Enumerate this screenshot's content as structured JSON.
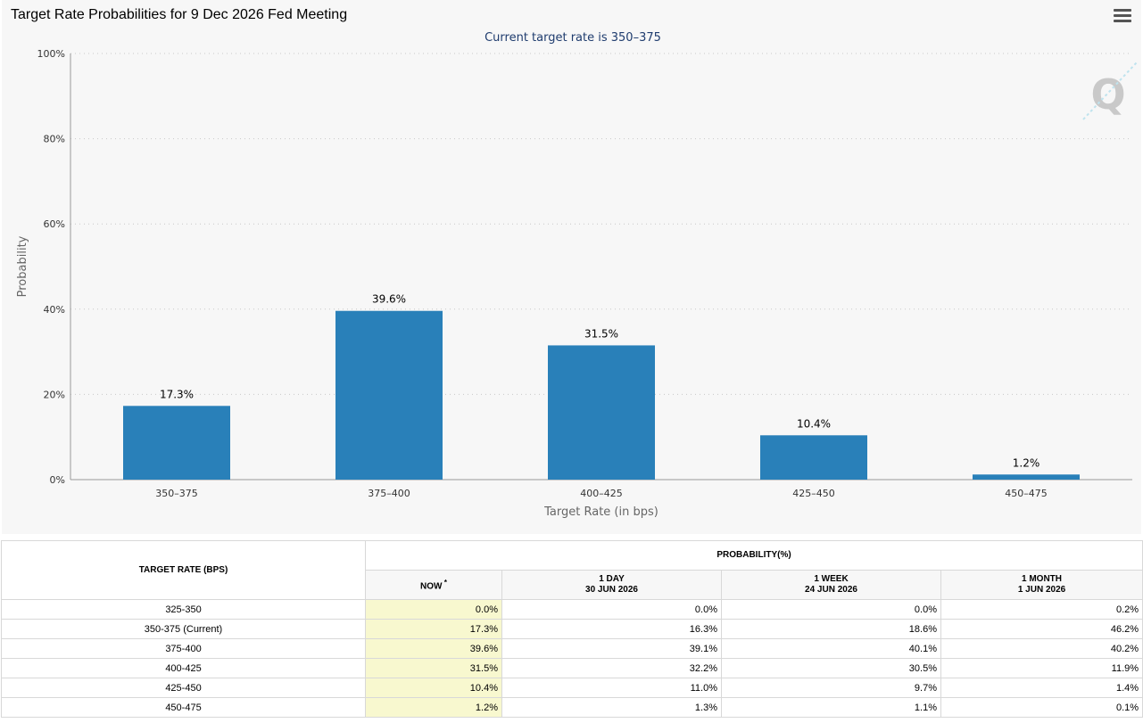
{
  "chart_title": "Target Rate Probabilities for 9 Dec 2026 Fed Meeting",
  "chart_data": {
    "type": "bar",
    "title": "Target Rate Probabilities for 9 Dec 2026 Fed Meeting",
    "subtitle": "Current target rate is 350–375",
    "categories": [
      "350–375",
      "375–400",
      "400–425",
      "425–450",
      "450–475"
    ],
    "values": [
      17.3,
      39.6,
      31.5,
      10.4,
      1.2
    ],
    "data_labels": [
      "17.3%",
      "39.6%",
      "31.5%",
      "10.4%",
      "1.2%"
    ],
    "xlabel": "Target Rate (in bps)",
    "ylabel": "Probability",
    "ylim": [
      0,
      100
    ],
    "yticks": [
      0,
      20,
      40,
      60,
      80,
      100
    ],
    "ytick_labels": [
      "0%",
      "20%",
      "40%",
      "60%",
      "80%",
      "100%"
    ],
    "grid": true,
    "bar_color": "#2980b9"
  },
  "watermark": "Q",
  "menu_icon": "hamburger-menu-icon",
  "table": {
    "rate_header": "TARGET RATE (BPS)",
    "prob_header": "PROBABILITY(%)",
    "columns": [
      {
        "line1": "NOW",
        "marker": "*",
        "line2": ""
      },
      {
        "line1": "1 DAY",
        "marker": "",
        "line2": "30 JUN 2026"
      },
      {
        "line1": "1 WEEK",
        "marker": "",
        "line2": "24 JUN 2026"
      },
      {
        "line1": "1 MONTH",
        "marker": "",
        "line2": "1 JUN 2026"
      }
    ],
    "rows": [
      {
        "rate": "325-350",
        "values": [
          "0.0%",
          "0.0%",
          "0.0%",
          "0.2%"
        ]
      },
      {
        "rate": "350-375 (Current)",
        "values": [
          "17.3%",
          "16.3%",
          "18.6%",
          "46.2%"
        ]
      },
      {
        "rate": "375-400",
        "values": [
          "39.6%",
          "39.1%",
          "40.1%",
          "40.2%"
        ]
      },
      {
        "rate": "400-425",
        "values": [
          "31.5%",
          "32.2%",
          "30.5%",
          "11.9%"
        ]
      },
      {
        "rate": "425-450",
        "values": [
          "10.4%",
          "11.0%",
          "9.7%",
          "1.4%"
        ]
      },
      {
        "rate": "450-475",
        "values": [
          "1.2%",
          "1.3%",
          "1.1%",
          "0.1%"
        ]
      }
    ]
  }
}
